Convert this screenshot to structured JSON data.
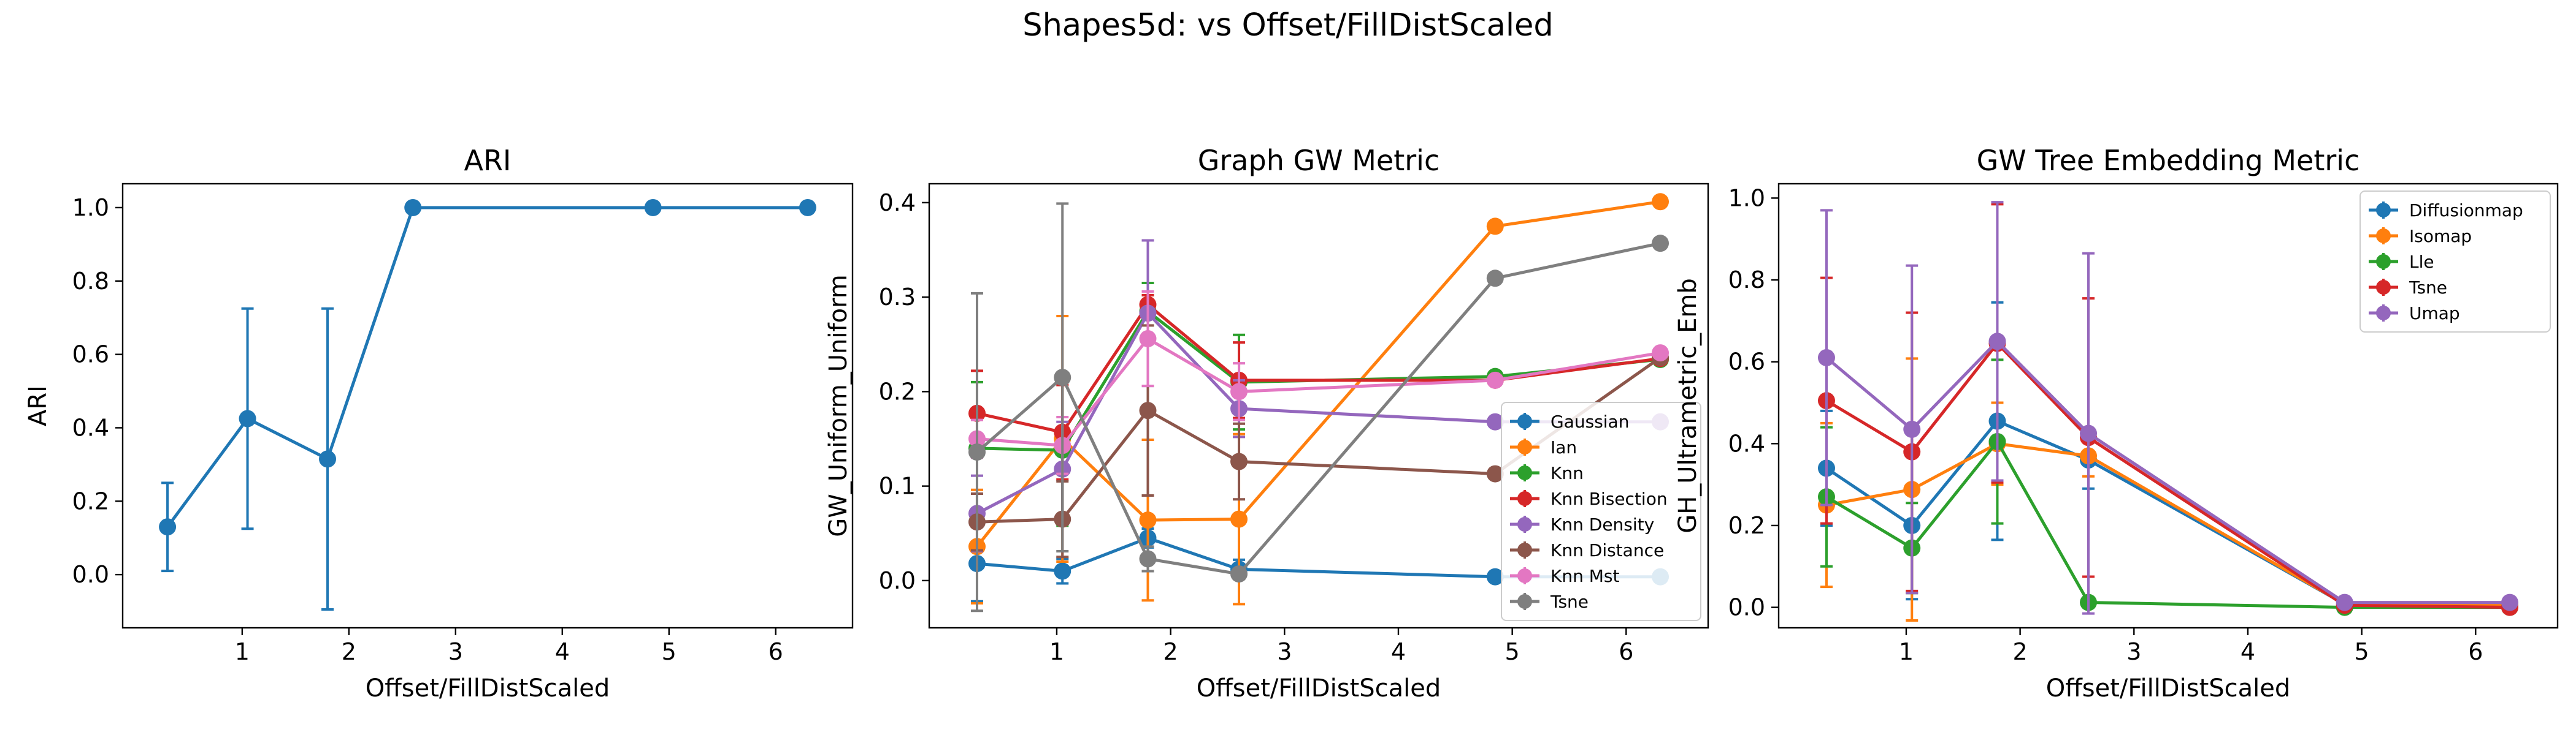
{
  "figure": {
    "title": "Shapes5d: vs Offset/FillDistScaled"
  },
  "chart_data": [
    {
      "type": "line",
      "title": "ARI",
      "xlabel": "Offset/FillDistScaled",
      "ylabel": "ARI",
      "xlim": [
        -0.12,
        6.72
      ],
      "ylim": [
        -0.145,
        1.065
      ],
      "xticks": [
        1,
        2,
        3,
        4,
        5,
        6
      ],
      "yticks": [
        0.0,
        0.2,
        0.4,
        0.6,
        0.8,
        1.0
      ],
      "ytick_labels": [
        "0.0",
        "0.2",
        "0.4",
        "0.6",
        "0.8",
        "1.0"
      ],
      "x": [
        0.3,
        1.05,
        1.8,
        2.6,
        4.85,
        6.3
      ],
      "series": [
        {
          "color": "#1f77b4",
          "values": [
            0.13,
            0.425,
            0.315,
            1.0,
            1.0,
            1.0
          ],
          "errors": [
            0.12,
            0.3,
            0.41,
            0,
            0,
            0
          ]
        }
      ]
    },
    {
      "type": "line",
      "title": "Graph GW Metric",
      "xlabel": "Offset/FillDistScaled",
      "ylabel": "GW_Uniform_Uniform",
      "xlim": [
        -0.12,
        6.72
      ],
      "ylim": [
        -0.05,
        0.42
      ],
      "xticks": [
        1,
        2,
        3,
        4,
        5,
        6
      ],
      "yticks": [
        0.0,
        0.1,
        0.2,
        0.3,
        0.4
      ],
      "ytick_labels": [
        "0.0",
        "0.1",
        "0.2",
        "0.3",
        "0.4"
      ],
      "legend": "lower-right",
      "x": [
        0.3,
        1.05,
        1.8,
        2.6,
        4.85,
        6.3
      ],
      "series": [
        {
          "name": "Gaussian",
          "color": "#1f77b4",
          "values": [
            0.018,
            0.01,
            0.045,
            0.012,
            0.004,
            0.004
          ],
          "errors": [
            0.04,
            0.013,
            0.01,
            0.01,
            0,
            0
          ]
        },
        {
          "name": "Ian",
          "color": "#ff7f0e",
          "values": [
            0.036,
            0.15,
            0.064,
            0.065,
            0.375,
            0.401
          ],
          "errors": [
            0.06,
            0.13,
            0.085,
            0.09,
            0,
            0
          ]
        },
        {
          "name": "Knn",
          "color": "#2ca02c",
          "values": [
            0.14,
            0.138,
            0.285,
            0.21,
            0.216,
            0.234
          ],
          "errors": [
            0.07,
            0.08,
            0.03,
            0.05,
            0,
            0
          ]
        },
        {
          "name": "Knn Bisection",
          "color": "#d62728",
          "values": [
            0.177,
            0.157,
            0.292,
            0.212,
            0.212,
            0.235
          ],
          "errors": [
            0.045,
            0.05,
            0.01,
            0.04,
            0,
            0
          ]
        },
        {
          "name": "Knn Density",
          "color": "#9467bd",
          "values": [
            0.071,
            0.118,
            0.283,
            0.182,
            0.168,
            0.168
          ],
          "errors": [
            0.04,
            0.05,
            0.077,
            0.03,
            0,
            0
          ]
        },
        {
          "name": "Knn Distance",
          "color": "#8c564b",
          "values": [
            0.062,
            0.065,
            0.18,
            0.126,
            0.113,
            0.236
          ],
          "errors": [
            0.03,
            0.04,
            0.09,
            0.04,
            0,
            0
          ]
        },
        {
          "name": "Knn Mst",
          "color": "#e377c2",
          "values": [
            0.15,
            0.143,
            0.256,
            0.2,
            0.212,
            0.241
          ],
          "errors": [
            0.02,
            0.03,
            0.05,
            0.03,
            0,
            0
          ]
        },
        {
          "name": "Tsne",
          "color": "#7f7f7f",
          "values": [
            0.136,
            0.215,
            0.023,
            0.007,
            0.32,
            0.357
          ],
          "errors": [
            0.168,
            0.184,
            0.013,
            0.005,
            0,
            0
          ]
        }
      ]
    },
    {
      "type": "line",
      "title": "GW Tree Embedding Metric",
      "xlabel": "Offset/FillDistScaled",
      "ylabel": "GH_Ultrametric_Emb",
      "xlim": [
        -0.12,
        6.72
      ],
      "ylim": [
        -0.05,
        1.035
      ],
      "xticks": [
        1,
        2,
        3,
        4,
        5,
        6
      ],
      "yticks": [
        0.0,
        0.2,
        0.4,
        0.6,
        0.8,
        1.0
      ],
      "ytick_labels": [
        "0.0",
        "0.2",
        "0.4",
        "0.6",
        "0.8",
        "1.0"
      ],
      "legend": "top-right",
      "x": [
        0.3,
        1.05,
        1.8,
        2.6,
        4.85,
        6.3
      ],
      "series": [
        {
          "name": "Diffusionmap",
          "color": "#1f77b4",
          "values": [
            0.34,
            0.2,
            0.455,
            0.36,
            0.008,
            0.008
          ],
          "errors": [
            0.14,
            0.18,
            0.29,
            0.07,
            0,
            0
          ]
        },
        {
          "name": "Isomap",
          "color": "#ff7f0e",
          "values": [
            0.25,
            0.288,
            0.4,
            0.37,
            0.008,
            0.005
          ],
          "errors": [
            0.2,
            0.32,
            0.1,
            0.05,
            0,
            0
          ]
        },
        {
          "name": "Lle",
          "color": "#2ca02c",
          "values": [
            0.27,
            0.145,
            0.405,
            0.012,
            0.0,
            0.0
          ],
          "errors": [
            0.17,
            0.11,
            0.2,
            0.01,
            0,
            0
          ]
        },
        {
          "name": "Tsne",
          "color": "#d62728",
          "values": [
            0.505,
            0.38,
            0.645,
            0.415,
            0.005,
            0.0
          ],
          "errors": [
            0.3,
            0.34,
            0.34,
            0.34,
            0,
            0
          ]
        },
        {
          "name": "Umap",
          "color": "#9467bd",
          "values": [
            0.61,
            0.435,
            0.65,
            0.425,
            0.012,
            0.012
          ],
          "errors": [
            0.36,
            0.4,
            0.34,
            0.44,
            0,
            0
          ]
        }
      ]
    }
  ]
}
